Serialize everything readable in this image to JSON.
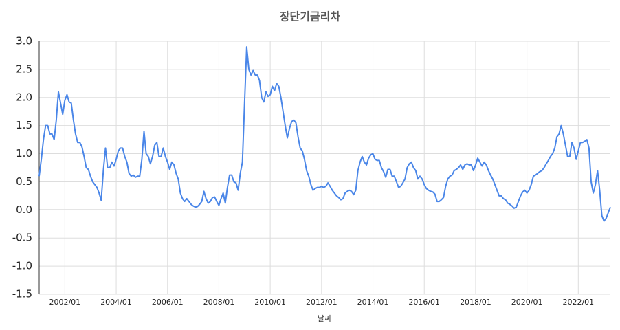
{
  "chart_data": {
    "type": "line",
    "title": "장단기금리차",
    "x_label": "날짜",
    "x": [
      "2001/01",
      "2001/02",
      "2001/03",
      "2001/04",
      "2001/05",
      "2001/06",
      "2001/07",
      "2001/08",
      "2001/09",
      "2001/10",
      "2001/11",
      "2001/12",
      "2002/01",
      "2002/02",
      "2002/03",
      "2002/04",
      "2002/05",
      "2002/06",
      "2002/07",
      "2002/08",
      "2002/09",
      "2002/10",
      "2002/11",
      "2002/12",
      "2003/01",
      "2003/02",
      "2003/03",
      "2003/04",
      "2003/05",
      "2003/06",
      "2003/07",
      "2003/08",
      "2003/09",
      "2003/10",
      "2003/11",
      "2003/12",
      "2004/01",
      "2004/02",
      "2004/03",
      "2004/04",
      "2004/05",
      "2004/06",
      "2004/07",
      "2004/08",
      "2004/09",
      "2004/10",
      "2004/11",
      "2004/12",
      "2005/01",
      "2005/02",
      "2005/03",
      "2005/04",
      "2005/05",
      "2005/06",
      "2005/07",
      "2005/08",
      "2005/09",
      "2005/10",
      "2005/11",
      "2005/12",
      "2006/01",
      "2006/02",
      "2006/03",
      "2006/04",
      "2006/05",
      "2006/06",
      "2006/07",
      "2006/08",
      "2006/09",
      "2006/10",
      "2006/11",
      "2006/12",
      "2007/01",
      "2007/02",
      "2007/03",
      "2007/04",
      "2007/05",
      "2007/06",
      "2007/07",
      "2007/08",
      "2007/09",
      "2007/10",
      "2007/11",
      "2007/12",
      "2008/01",
      "2008/02",
      "2008/03",
      "2008/04",
      "2008/05",
      "2008/06",
      "2008/07",
      "2008/08",
      "2008/09",
      "2008/10",
      "2008/11",
      "2008/12",
      "2009/01",
      "2009/02",
      "2009/03",
      "2009/04",
      "2009/05",
      "2009/06",
      "2009/07",
      "2009/08",
      "2009/09",
      "2009/10",
      "2009/11",
      "2009/12",
      "2010/01",
      "2010/02",
      "2010/03",
      "2010/04",
      "2010/05",
      "2010/06",
      "2010/07",
      "2010/08",
      "2010/09",
      "2010/10",
      "2010/11",
      "2010/12",
      "2011/01",
      "2011/02",
      "2011/03",
      "2011/04",
      "2011/05",
      "2011/06",
      "2011/07",
      "2011/08",
      "2011/09",
      "2011/10",
      "2011/11",
      "2011/12",
      "2012/01",
      "2012/02",
      "2012/03",
      "2012/04",
      "2012/05",
      "2012/06",
      "2012/07",
      "2012/08",
      "2012/09",
      "2012/10",
      "2012/11",
      "2012/12",
      "2013/01",
      "2013/02",
      "2013/03",
      "2013/04",
      "2013/05",
      "2013/06",
      "2013/07",
      "2013/08",
      "2013/09",
      "2013/10",
      "2013/11",
      "2013/12",
      "2014/01",
      "2014/02",
      "2014/03",
      "2014/04",
      "2014/05",
      "2014/06",
      "2014/07",
      "2014/08",
      "2014/09",
      "2014/10",
      "2014/11",
      "2014/12",
      "2015/01",
      "2015/02",
      "2015/03",
      "2015/04",
      "2015/05",
      "2015/06",
      "2015/07",
      "2015/08",
      "2015/09",
      "2015/10",
      "2015/11",
      "2015/12",
      "2016/01",
      "2016/02",
      "2016/03",
      "2016/04",
      "2016/05",
      "2016/06",
      "2016/07",
      "2016/08",
      "2016/09",
      "2016/10",
      "2016/11",
      "2016/12",
      "2017/01",
      "2017/02",
      "2017/03",
      "2017/04",
      "2017/05",
      "2017/06",
      "2017/07",
      "2017/08",
      "2017/09",
      "2017/10",
      "2017/11",
      "2017/12",
      "2018/01",
      "2018/02",
      "2018/03",
      "2018/04",
      "2018/05",
      "2018/06",
      "2018/07",
      "2018/08",
      "2018/09",
      "2018/10",
      "2018/11",
      "2018/12",
      "2019/01",
      "2019/02",
      "2019/03",
      "2019/04",
      "2019/05",
      "2019/06",
      "2019/07",
      "2019/08",
      "2019/09",
      "2019/10",
      "2019/11",
      "2019/12",
      "2020/01",
      "2020/02",
      "2020/03",
      "2020/04",
      "2020/05",
      "2020/06",
      "2020/07",
      "2020/08",
      "2020/09",
      "2020/10",
      "2020/11",
      "2020/12",
      "2021/01",
      "2021/02",
      "2021/03",
      "2021/04",
      "2021/05",
      "2021/06",
      "2021/07",
      "2021/08",
      "2021/09",
      "2021/10",
      "2021/11",
      "2021/12",
      "2022/01",
      "2022/02",
      "2022/03",
      "2022/04",
      "2022/05",
      "2022/06",
      "2022/07",
      "2022/08",
      "2022/09",
      "2022/10",
      "2022/11",
      "2022/12",
      "2023/01",
      "2023/02",
      "2023/03",
      "2023/04"
    ],
    "series": [
      {
        "name": "장단기금리차",
        "color": "#4a86e8",
        "values": [
          0.6,
          0.9,
          1.25,
          1.5,
          1.5,
          1.35,
          1.35,
          1.25,
          1.6,
          2.1,
          1.9,
          1.7,
          1.95,
          2.05,
          1.92,
          1.9,
          1.6,
          1.35,
          1.2,
          1.2,
          1.12,
          0.95,
          0.75,
          0.72,
          0.6,
          0.5,
          0.45,
          0.4,
          0.3,
          0.17,
          0.7,
          1.1,
          0.75,
          0.75,
          0.85,
          0.78,
          0.9,
          1.05,
          1.1,
          1.1,
          0.95,
          0.85,
          0.65,
          0.6,
          0.62,
          0.58,
          0.6,
          0.6,
          0.9,
          1.4,
          1.0,
          0.95,
          0.82,
          0.95,
          1.15,
          1.2,
          0.95,
          0.95,
          1.1,
          0.95,
          0.85,
          0.72,
          0.85,
          0.8,
          0.65,
          0.55,
          0.3,
          0.2,
          0.15,
          0.2,
          0.15,
          0.1,
          0.07,
          0.05,
          0.06,
          0.1,
          0.15,
          0.33,
          0.2,
          0.12,
          0.15,
          0.22,
          0.23,
          0.15,
          0.08,
          0.2,
          0.3,
          0.12,
          0.4,
          0.62,
          0.62,
          0.5,
          0.48,
          0.35,
          0.65,
          0.85,
          1.9,
          2.9,
          2.5,
          2.4,
          2.48,
          2.4,
          2.4,
          2.3,
          2.0,
          1.92,
          2.1,
          2.02,
          2.05,
          2.2,
          2.12,
          2.25,
          2.2,
          2.0,
          1.75,
          1.5,
          1.28,
          1.45,
          1.57,
          1.6,
          1.55,
          1.3,
          1.1,
          1.05,
          0.9,
          0.7,
          0.6,
          0.45,
          0.35,
          0.38,
          0.4,
          0.4,
          0.42,
          0.4,
          0.42,
          0.48,
          0.42,
          0.35,
          0.3,
          0.25,
          0.22,
          0.18,
          0.2,
          0.3,
          0.33,
          0.35,
          0.33,
          0.27,
          0.35,
          0.7,
          0.85,
          0.95,
          0.85,
          0.8,
          0.92,
          0.98,
          1.0,
          0.9,
          0.88,
          0.88,
          0.75,
          0.68,
          0.58,
          0.72,
          0.72,
          0.6,
          0.6,
          0.5,
          0.4,
          0.42,
          0.48,
          0.55,
          0.75,
          0.82,
          0.85,
          0.75,
          0.7,
          0.55,
          0.6,
          0.55,
          0.45,
          0.38,
          0.35,
          0.33,
          0.32,
          0.28,
          0.15,
          0.15,
          0.18,
          0.22,
          0.42,
          0.55,
          0.6,
          0.62,
          0.7,
          0.72,
          0.75,
          0.8,
          0.72,
          0.8,
          0.82,
          0.8,
          0.8,
          0.7,
          0.8,
          0.92,
          0.85,
          0.78,
          0.85,
          0.8,
          0.7,
          0.62,
          0.55,
          0.45,
          0.35,
          0.25,
          0.25,
          0.2,
          0.18,
          0.12,
          0.1,
          0.07,
          0.03,
          0.05,
          0.15,
          0.25,
          0.32,
          0.35,
          0.3,
          0.35,
          0.45,
          0.6,
          0.62,
          0.65,
          0.68,
          0.7,
          0.75,
          0.82,
          0.88,
          0.95,
          1.0,
          1.1,
          1.3,
          1.35,
          1.5,
          1.35,
          1.15,
          0.95,
          0.95,
          1.2,
          1.1,
          0.9,
          1.05,
          1.2,
          1.2,
          1.22,
          1.25,
          1.1,
          0.5,
          0.3,
          0.45,
          0.7,
          0.35,
          -0.1,
          -0.2,
          -0.15,
          -0.05,
          0.05
        ]
      }
    ],
    "xticks": [
      "2002/01",
      "2004/01",
      "2006/01",
      "2008/01",
      "2010/01",
      "2012/01",
      "2014/01",
      "2016/01",
      "2018/01",
      "2020/01",
      "2022/01"
    ],
    "ylim": [
      -1.5,
      3
    ],
    "yticks": [
      {
        "value": -1.5,
        "label": "-1.5"
      },
      {
        "value": -1,
        "label": "-1.0"
      },
      -0.5,
      {
        "value": 0,
        "label": "0.0"
      },
      0.5,
      {
        "value": 1,
        "label": "1.0"
      },
      1.5,
      {
        "value": 2,
        "label": "2.0"
      },
      2.5,
      {
        "value": 3,
        "label": "3.0"
      }
    ],
    "grid": true
  }
}
